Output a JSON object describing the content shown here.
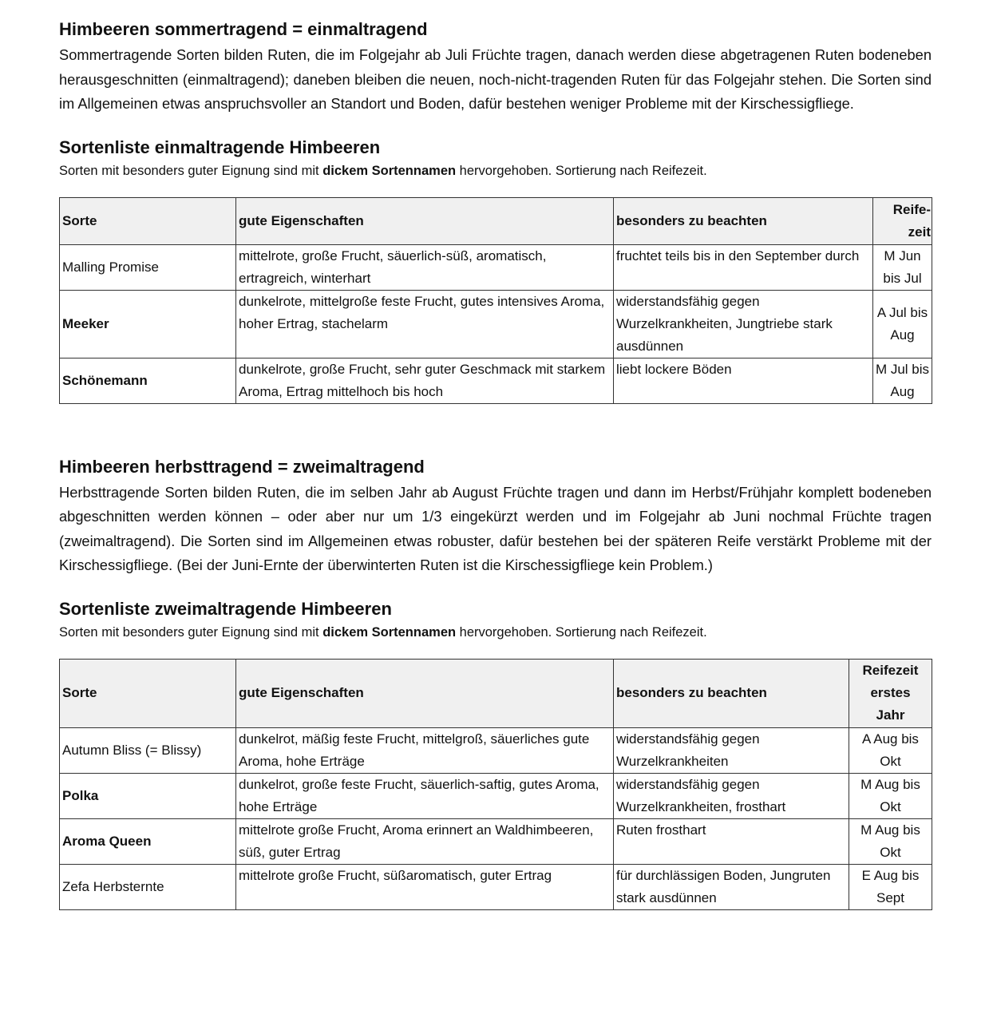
{
  "section1": {
    "heading": "Himbeeren sommertragend = einmaltragend",
    "text": "Sommertragende Sorten bilden Ruten, die im Folgejahr ab Juli Früchte tragen, danach werden diese abgetragenen Ruten bodeneben herausgeschnitten (einmaltragend); daneben bleiben die neuen, noch-nicht-tragenden Ruten für das Folgejahr stehen. Die Sorten sind im Allgemeinen etwas anspruchsvoller an Standort und Boden, dafür bestehen weniger Probleme mit der Kirschessigfliege.",
    "list_heading": "Sortenliste einmaltragende Himbeeren",
    "note_pre": "Sorten mit besonders guter Eignung sind mit ",
    "note_bold": "dickem Sortennamen",
    "note_post": " hervorgehoben. Sortierung nach Reifezeit.",
    "table": {
      "headers": [
        "Sorte",
        "gute Eigenschaften",
        "besonders zu beachten",
        "Reife-zeit"
      ],
      "rows": [
        {
          "sorte": "Malling Promise",
          "bold": false,
          "eigenschaften": "mittelrote, große Frucht, säuerlich-süß, aromatisch, ertragreich, winterhart",
          "beachten": "fruchtet teils bis in den September durch",
          "reife": "M Jun bis Jul"
        },
        {
          "sorte": "Meeker",
          "bold": true,
          "eigenschaften": "dunkelrote, mittelgroße feste Frucht, gutes intensives Aroma, hoher Ertrag, stachelarm",
          "beachten": "widerstandsfähig gegen Wurzelkrankheiten, Jungtriebe stark ausdünnen",
          "reife": "A Jul bis Aug"
        },
        {
          "sorte": "Schönemann",
          "bold": true,
          "eigenschaften": "dunkelrote, große Frucht, sehr guter Geschmack mit starkem Aroma, Ertrag mittelhoch bis hoch",
          "beachten": "liebt lockere Böden",
          "reife": "M Jul bis Aug"
        }
      ]
    }
  },
  "section2": {
    "heading": "Himbeeren herbsttragend = zweimaltragend",
    "text": "Herbsttragende Sorten bilden Ruten, die im selben Jahr ab August Früchte tragen und dann im Herbst/Frühjahr komplett bodeneben abgeschnitten werden können – oder aber nur um 1/3 eingekürzt werden und im Folgejahr ab Juni nochmal Früchte tragen (zweimaltragend). Die Sorten sind im Allgemeinen etwas robuster, dafür bestehen bei der späteren Reife verstärkt Probleme mit der Kirschessigfliege. (Bei der Juni-Ernte der überwinterten Ruten ist die Kirschessigfliege kein Problem.)",
    "list_heading": "Sortenliste zweimaltragende Himbeeren",
    "note_pre": "Sorten mit besonders guter Eignung sind mit ",
    "note_bold": "dickem Sortennamen",
    "note_post": " hervorgehoben. Sortierung nach Reifezeit.",
    "table": {
      "headers": [
        "Sorte",
        "gute Eigenschaften",
        "besonders zu beachten",
        "Reifezeit erstes Jahr"
      ],
      "rows": [
        {
          "sorte": "Autumn Bliss (= Blissy)",
          "bold": false,
          "eigenschaften": "dunkelrot, mäßig feste Frucht, mittelgroß, säuerliches gute Aroma, hohe Erträge",
          "beachten": "widerstandsfähig gegen Wurzelkrankheiten",
          "reife": "A Aug bis Okt"
        },
        {
          "sorte": "Polka",
          "bold": true,
          "eigenschaften": "dunkelrot, große feste Frucht, säuerlich-saftig, gutes Aroma, hohe Erträge",
          "beachten": "widerstandsfähig gegen Wurzelkrankheiten, frosthart",
          "reife": "M Aug bis Okt"
        },
        {
          "sorte": "Aroma Queen",
          "bold": true,
          "eigenschaften": "mittelrote große Frucht, Aroma erinnert an Waldhimbeeren, süß, guter Ertrag",
          "beachten": "Ruten frosthart",
          "reife": "M Aug bis Okt"
        },
        {
          "sorte": "Zefa  Herbsternte",
          "bold": false,
          "eigenschaften": "mittelrote große Frucht, süßaromatisch, guter Ertrag",
          "beachten": "für durchlässigen Boden, Jungruten stark ausdünnen",
          "reife": "E Aug bis Sept"
        }
      ]
    }
  }
}
